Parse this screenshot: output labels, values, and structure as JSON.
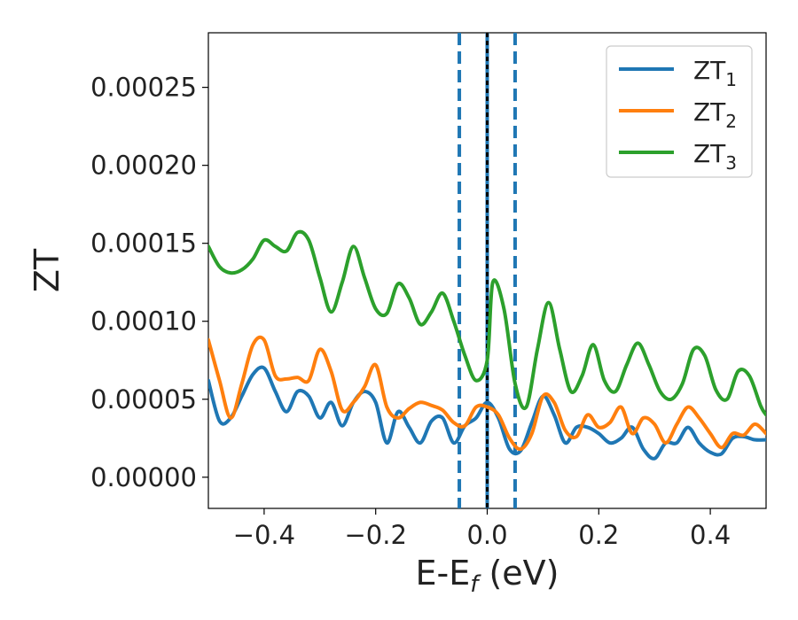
{
  "chart_data": {
    "type": "line",
    "xlabel": "E-E",
    "xlabel_sub": "f",
    "xlabel_unit": " (eV)",
    "ylabel": "ZT",
    "xlim": [
      -0.5,
      0.5
    ],
    "ylim": [
      -2e-05,
      0.000285
    ],
    "xticks": [
      -0.4,
      -0.2,
      0.0,
      0.2,
      0.4
    ],
    "xtick_labels": [
      "−0.4",
      "−0.2",
      "0.0",
      "0.2",
      "0.4"
    ],
    "yticks": [
      0,
      5e-05,
      0.0001,
      0.00015,
      0.0002,
      0.00025
    ],
    "ytick_labels": [
      "0.00000",
      "0.00005",
      "0.00010",
      "0.00015",
      "0.00020",
      "0.00025"
    ],
    "grid": false,
    "legend_position": "top-right",
    "vlines": [
      {
        "x": -0.05,
        "style": "dashed",
        "color": "#1f77b4"
      },
      {
        "x": 0.0,
        "style": "solid",
        "color": "#1f77b4"
      },
      {
        "x": 0.0,
        "style": "dotted",
        "color": "#000000"
      },
      {
        "x": 0.05,
        "style": "dashed",
        "color": "#1f77b4"
      }
    ],
    "series": [
      {
        "name": "ZT",
        "sub": "1",
        "color": "#1f77b4",
        "points": [
          [
            -0.5,
            6.2e-05
          ],
          [
            -0.48,
            3.6e-05
          ],
          [
            -0.46,
            3.8e-05
          ],
          [
            -0.44,
            5.2e-05
          ],
          [
            -0.42,
            6.6e-05
          ],
          [
            -0.4,
            7e-05
          ],
          [
            -0.38,
            5.5e-05
          ],
          [
            -0.36,
            4.2e-05
          ],
          [
            -0.34,
            5.5e-05
          ],
          [
            -0.32,
            5.2e-05
          ],
          [
            -0.3,
            3.8e-05
          ],
          [
            -0.28,
            4.8e-05
          ],
          [
            -0.26,
            3.3e-05
          ],
          [
            -0.24,
            4.8e-05
          ],
          [
            -0.22,
            5.5e-05
          ],
          [
            -0.2,
            4.8e-05
          ],
          [
            -0.18,
            2.2e-05
          ],
          [
            -0.16,
            4.2e-05
          ],
          [
            -0.14,
            3.2e-05
          ],
          [
            -0.12,
            2.2e-05
          ],
          [
            -0.1,
            3.6e-05
          ],
          [
            -0.08,
            3.8e-05
          ],
          [
            -0.06,
            2.2e-05
          ],
          [
            -0.04,
            3.3e-05
          ],
          [
            -0.02,
            3.8e-05
          ],
          [
            0.0,
            4.8e-05
          ],
          [
            0.02,
            3.8e-05
          ],
          [
            0.04,
            1.8e-05
          ],
          [
            0.06,
            1.7e-05
          ],
          [
            0.08,
            3.5e-05
          ],
          [
            0.1,
            5.2e-05
          ],
          [
            0.12,
            4e-05
          ],
          [
            0.14,
            2.2e-05
          ],
          [
            0.16,
            3.2e-05
          ],
          [
            0.18,
            3.2e-05
          ],
          [
            0.2,
            2.8e-05
          ],
          [
            0.22,
            2.2e-05
          ],
          [
            0.24,
            2.5e-05
          ],
          [
            0.26,
            3.2e-05
          ],
          [
            0.28,
            1.8e-05
          ],
          [
            0.3,
            1.2e-05
          ],
          [
            0.32,
            2.2e-05
          ],
          [
            0.34,
            2.2e-05
          ],
          [
            0.36,
            3.2e-05
          ],
          [
            0.38,
            2.2e-05
          ],
          [
            0.4,
            1.6e-05
          ],
          [
            0.42,
            1.5e-05
          ],
          [
            0.44,
            2.5e-05
          ],
          [
            0.46,
            2.6e-05
          ],
          [
            0.48,
            2.4e-05
          ],
          [
            0.5,
            2.4e-05
          ]
        ]
      },
      {
        "name": "ZT",
        "sub": "2",
        "color": "#ff7f0e",
        "points": [
          [
            -0.5,
            8.8e-05
          ],
          [
            -0.48,
            6.2e-05
          ],
          [
            -0.46,
            3.8e-05
          ],
          [
            -0.44,
            6e-05
          ],
          [
            -0.42,
            8.5e-05
          ],
          [
            -0.4,
            8.8e-05
          ],
          [
            -0.38,
            6.5e-05
          ],
          [
            -0.36,
            6.3e-05
          ],
          [
            -0.34,
            6.4e-05
          ],
          [
            -0.32,
            6.2e-05
          ],
          [
            -0.3,
            8.2e-05
          ],
          [
            -0.28,
            6.8e-05
          ],
          [
            -0.26,
            4.3e-05
          ],
          [
            -0.24,
            4.8e-05
          ],
          [
            -0.22,
            5.8e-05
          ],
          [
            -0.2,
            7.2e-05
          ],
          [
            -0.18,
            4.5e-05
          ],
          [
            -0.16,
            3.8e-05
          ],
          [
            -0.14,
            4.4e-05
          ],
          [
            -0.12,
            4.8e-05
          ],
          [
            -0.1,
            4.6e-05
          ],
          [
            -0.08,
            4.3e-05
          ],
          [
            -0.06,
            3.5e-05
          ],
          [
            -0.04,
            3.3e-05
          ],
          [
            -0.02,
            4.5e-05
          ],
          [
            0.0,
            4.5e-05
          ],
          [
            0.02,
            4e-05
          ],
          [
            0.04,
            2.5e-05
          ],
          [
            0.06,
            1.8e-05
          ],
          [
            0.08,
            2.8e-05
          ],
          [
            0.1,
            5.2e-05
          ],
          [
            0.12,
            4.8e-05
          ],
          [
            0.14,
            3e-05
          ],
          [
            0.16,
            2.6e-05
          ],
          [
            0.18,
            4e-05
          ],
          [
            0.2,
            3.2e-05
          ],
          [
            0.22,
            3.5e-05
          ],
          [
            0.24,
            4.5e-05
          ],
          [
            0.26,
            2.8e-05
          ],
          [
            0.28,
            3.8e-05
          ],
          [
            0.3,
            3.4e-05
          ],
          [
            0.32,
            2.2e-05
          ],
          [
            0.34,
            3.4e-05
          ],
          [
            0.36,
            4.5e-05
          ],
          [
            0.38,
            3.8e-05
          ],
          [
            0.4,
            2.8e-05
          ],
          [
            0.42,
            1.9e-05
          ],
          [
            0.44,
            2.8e-05
          ],
          [
            0.46,
            2.7e-05
          ],
          [
            0.48,
            3.4e-05
          ],
          [
            0.5,
            2.8e-05
          ]
        ]
      },
      {
        "name": "ZT",
        "sub": "3",
        "color": "#2ca02c",
        "points": [
          [
            -0.5,
            0.000148
          ],
          [
            -0.48,
            0.000135
          ],
          [
            -0.46,
            0.000131
          ],
          [
            -0.44,
            0.000133
          ],
          [
            -0.42,
            0.00014
          ],
          [
            -0.4,
            0.000152
          ],
          [
            -0.38,
            0.000148
          ],
          [
            -0.36,
            0.000145
          ],
          [
            -0.34,
            0.000157
          ],
          [
            -0.32,
            0.000152
          ],
          [
            -0.3,
            0.000128
          ],
          [
            -0.28,
            0.000106
          ],
          [
            -0.26,
            0.000125
          ],
          [
            -0.24,
            0.000148
          ],
          [
            -0.22,
            0.000128
          ],
          [
            -0.2,
            0.000108
          ],
          [
            -0.18,
            0.000105
          ],
          [
            -0.16,
            0.000124
          ],
          [
            -0.14,
            0.000115
          ],
          [
            -0.12,
            9.8e-05
          ],
          [
            -0.1,
            0.000106
          ],
          [
            -0.08,
            0.000118
          ],
          [
            -0.06,
            0.0001
          ],
          [
            -0.04,
            7.8e-05
          ],
          [
            -0.02,
            6.2e-05
          ],
          [
            0.0,
            7.5e-05
          ],
          [
            0.01,
            0.000125
          ],
          [
            0.03,
            0.000108
          ],
          [
            0.05,
            6e-05
          ],
          [
            0.07,
            4.5e-05
          ],
          [
            0.09,
            8.2e-05
          ],
          [
            0.11,
            0.000112
          ],
          [
            0.13,
            8.2e-05
          ],
          [
            0.15,
            5.5e-05
          ],
          [
            0.17,
            6.5e-05
          ],
          [
            0.19,
            8.5e-05
          ],
          [
            0.21,
            6.2e-05
          ],
          [
            0.23,
            5.5e-05
          ],
          [
            0.25,
            7.2e-05
          ],
          [
            0.27,
            8.6e-05
          ],
          [
            0.29,
            7.2e-05
          ],
          [
            0.31,
            5.5e-05
          ],
          [
            0.33,
            5e-05
          ],
          [
            0.35,
            6e-05
          ],
          [
            0.37,
            8.2e-05
          ],
          [
            0.39,
            7.8e-05
          ],
          [
            0.41,
            5.6e-05
          ],
          [
            0.43,
            5e-05
          ],
          [
            0.45,
            6.8e-05
          ],
          [
            0.47,
            6.5e-05
          ],
          [
            0.49,
            4.6e-05
          ],
          [
            0.5,
            4e-05
          ]
        ]
      }
    ]
  }
}
